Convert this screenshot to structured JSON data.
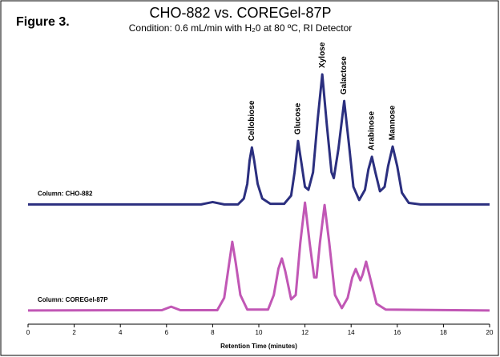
{
  "chart_data": {
    "type": "line",
    "figure_label": "Figure 3.",
    "title": "CHO-882 vs. COREGel-87P",
    "subtitle": "Condition: 0.6 mL/min with H₂0 at 80 ºC, RI Detector",
    "x_label": "Retention Time (minutes)",
    "xlim": [
      0,
      20
    ],
    "xticks": [
      0,
      2,
      4,
      6,
      8,
      10,
      12,
      14,
      16,
      18,
      20
    ],
    "ylim": [
      0,
      100
    ],
    "series": [
      {
        "name": "Column: CHO-882",
        "color": "#2b2f7f",
        "x": [
          0,
          7.5,
          8.0,
          8.5,
          9.1,
          9.35,
          9.5,
          9.6,
          9.7,
          9.8,
          9.95,
          10.15,
          10.5,
          11.1,
          11.4,
          11.55,
          11.7,
          11.85,
          12.0,
          12.15,
          12.35,
          12.55,
          12.75,
          12.95,
          13.15,
          13.25,
          13.45,
          13.7,
          13.9,
          14.1,
          14.35,
          14.6,
          14.75,
          14.9,
          15.05,
          15.25,
          15.45,
          15.6,
          15.8,
          16.0,
          16.2,
          16.5,
          17,
          20
        ],
        "values": [
          41,
          41,
          41.8,
          41,
          41,
          43,
          48,
          56,
          60.5,
          56,
          48,
          43,
          41.2,
          41.2,
          44,
          52,
          62.7,
          55,
          47,
          46,
          52,
          70,
          85.5,
          68,
          52,
          50,
          60,
          76.4,
          62,
          47,
          42.5,
          46,
          53,
          57.3,
          52,
          45.5,
          47,
          54,
          60.8,
          54,
          45,
          41.5,
          41,
          41
        ]
      },
      {
        "name": "Column: COREGel-87P",
        "color": "#c157b5",
        "x": [
          0,
          5.8,
          6.2,
          6.6,
          8.2,
          8.5,
          8.7,
          8.85,
          9.0,
          9.2,
          9.5,
          10.4,
          10.65,
          10.85,
          11.0,
          11.15,
          11.4,
          11.6,
          11.8,
          12.0,
          12.2,
          12.4,
          12.5,
          12.65,
          12.85,
          13.05,
          13.3,
          13.6,
          13.85,
          14.05,
          14.2,
          14.4,
          14.5,
          14.65,
          14.85,
          15.1,
          15.5,
          20
        ],
        "values": [
          4.7,
          4.8,
          6,
          4.8,
          4.8,
          9,
          20,
          28.2,
          21,
          10,
          5,
          5,
          10,
          19,
          22.5,
          18,
          8.5,
          10,
          28,
          41.6,
          28,
          16,
          16,
          28,
          40.8,
          28,
          10,
          5.5,
          9,
          16,
          18.9,
          15,
          17,
          21.4,
          15,
          7,
          5,
          4.7
        ]
      }
    ],
    "peaks": [
      {
        "label": "Cellobiose",
        "x": 9.7
      },
      {
        "label": "Glucose",
        "x": 11.7
      },
      {
        "label": "Xylose",
        "x": 12.75
      },
      {
        "label": "Galactose",
        "x": 13.7
      },
      {
        "label": "Arabinose",
        "x": 14.9
      },
      {
        "label": "Mannose",
        "x": 15.8
      }
    ]
  }
}
